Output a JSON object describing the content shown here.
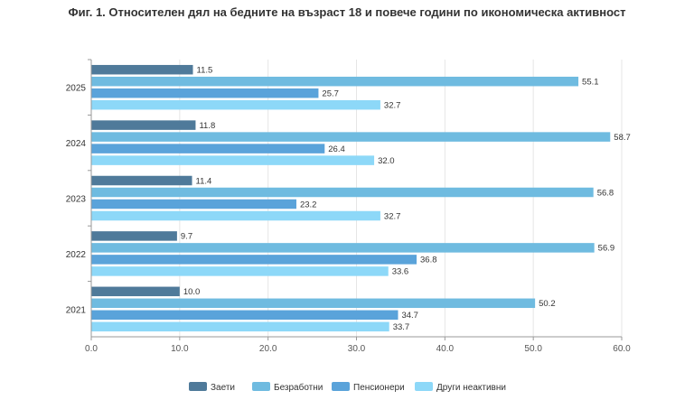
{
  "chart_data": {
    "type": "bar",
    "orientation": "horizontal",
    "title": "Фиг. 1. Относителен дял на бедните на възраст 18 и повече години по икономическа активност",
    "categories": [
      "2025",
      "2024",
      "2023",
      "2022",
      "2021"
    ],
    "series": [
      {
        "name": "Заети",
        "color": "#4f7a9a",
        "values": [
          11.5,
          11.8,
          11.4,
          9.7,
          10.0
        ]
      },
      {
        "name": "Безработни",
        "color": "#6fbbe0",
        "values": [
          55.1,
          58.7,
          56.8,
          56.9,
          50.2
        ]
      },
      {
        "name": "Пенсионери",
        "color": "#5aa3da",
        "values": [
          25.7,
          26.4,
          23.2,
          36.8,
          34.7
        ]
      },
      {
        "name": "Други неактивни",
        "color": "#8dd8f8",
        "values": [
          32.7,
          32.0,
          32.7,
          33.6,
          33.7
        ]
      }
    ],
    "xlim": [
      0,
      60
    ],
    "xticks": [
      "0.0",
      "10.0",
      "20.0",
      "30.0",
      "40.0",
      "50.0",
      "60.0"
    ],
    "grid": true,
    "legend": "bottom"
  }
}
